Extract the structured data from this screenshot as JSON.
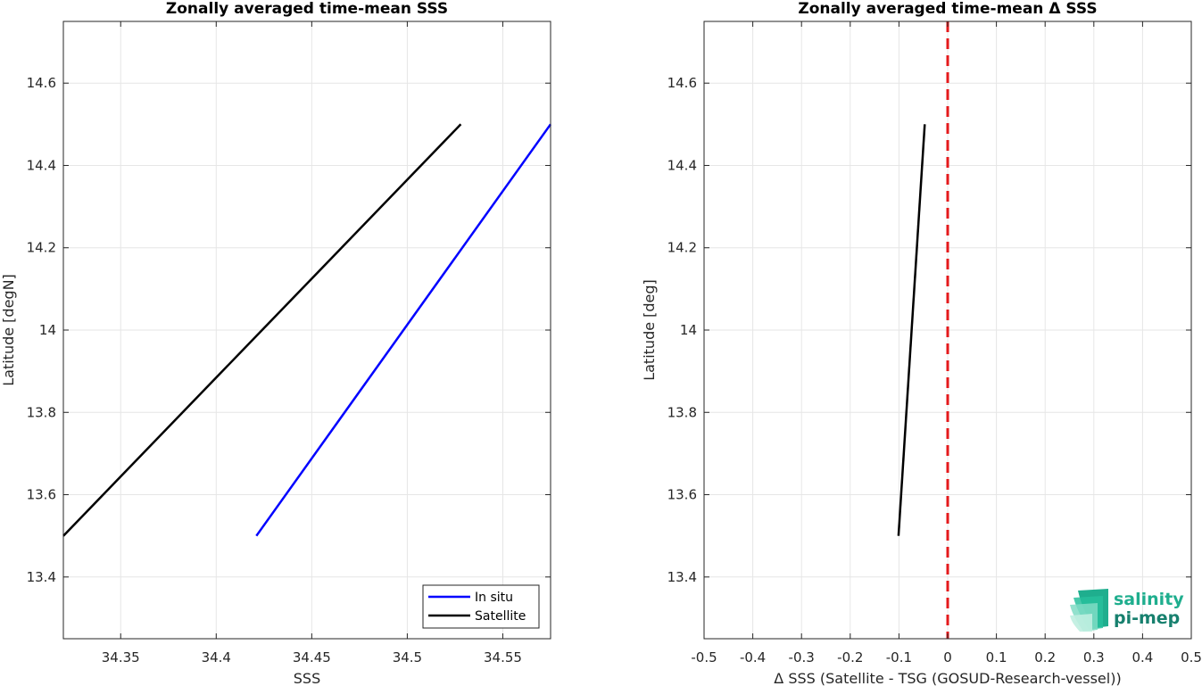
{
  "chart_data": [
    {
      "type": "line",
      "title": "Zonally averaged time-mean SSS",
      "xlabel": "SSS",
      "ylabel": "Latitude [degN]",
      "xlim": [
        34.32,
        34.575
      ],
      "ylim": [
        13.25,
        14.75
      ],
      "xticks": [
        34.35,
        34.4,
        34.45,
        34.5,
        34.55
      ],
      "xtick_labels": [
        "34.35",
        "34.4",
        "34.45",
        "34.5",
        "34.55"
      ],
      "yticks": [
        13.4,
        13.6,
        13.8,
        14.0,
        14.2,
        14.4,
        14.6
      ],
      "ytick_labels": [
        "13.4",
        "13.6",
        "13.8",
        "14",
        "14.2",
        "14.4",
        "14.6"
      ],
      "grid": true,
      "legend_position": "bottom-right",
      "series": [
        {
          "name": "In situ",
          "color": "#0000ff",
          "x": [
            34.421,
            34.575
          ],
          "y": [
            13.5,
            14.5
          ]
        },
        {
          "name": "Satellite",
          "color": "#000000",
          "x": [
            34.32,
            34.528
          ],
          "y": [
            13.5,
            14.5
          ]
        }
      ]
    },
    {
      "type": "line",
      "title": "Zonally averaged time-mean Δ SSS",
      "xlabel": "Δ SSS (Satellite - TSG (GOSUD-Research-vessel))",
      "ylabel": "Latitude [deg]",
      "xlim": [
        -0.5,
        0.5
      ],
      "ylim": [
        13.25,
        14.75
      ],
      "xticks": [
        -0.5,
        -0.4,
        -0.3,
        -0.2,
        -0.1,
        0,
        0.1,
        0.2,
        0.3,
        0.4,
        0.5
      ],
      "xtick_labels": [
        "-0.5",
        "-0.4",
        "-0.3",
        "-0.2",
        "-0.1",
        "0",
        "0.1",
        "0.2",
        "0.3",
        "0.4",
        "0.5"
      ],
      "yticks": [
        13.4,
        13.6,
        13.8,
        14.0,
        14.2,
        14.4,
        14.6
      ],
      "ytick_labels": [
        "13.4",
        "13.6",
        "13.8",
        "14",
        "14.2",
        "14.4",
        "14.6"
      ],
      "grid": true,
      "reference_line": {
        "x": 0,
        "color": "#e41a1c",
        "style": "dashed"
      },
      "series": [
        {
          "color": "#000000",
          "x": [
            -0.101,
            -0.047
          ],
          "y": [
            13.5,
            14.5
          ]
        }
      ]
    }
  ],
  "logo": {
    "line1": "salinity",
    "line2": "pi-mep",
    "color1": "#1fae8e",
    "color2": "#17806e"
  }
}
